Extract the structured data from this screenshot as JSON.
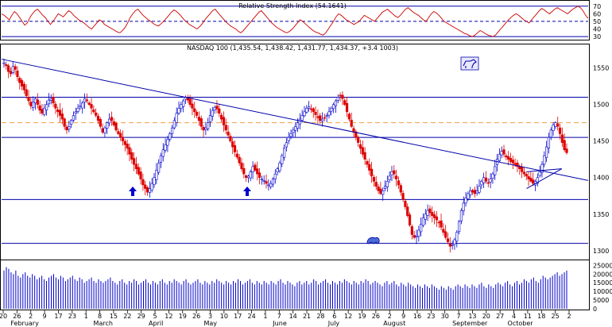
{
  "chart_data": [
    {
      "type": "line",
      "title": "Relative Strength Index (54.1641)",
      "y_ticks": [
        30,
        40,
        50,
        60,
        70
      ],
      "ylim": [
        28,
        75
      ],
      "reference_lines": [
        70,
        50,
        30
      ],
      "series": [
        {
          "values": [
            60,
            58,
            55,
            52,
            58,
            63,
            60,
            55,
            50,
            45,
            48,
            55,
            60,
            64,
            66,
            62,
            58,
            55,
            50,
            46,
            50,
            55,
            60,
            58,
            56,
            60,
            64,
            62,
            58,
            55,
            52,
            50,
            48,
            45,
            42,
            40,
            44,
            48,
            52,
            50,
            46,
            44,
            42,
            40,
            38,
            36,
            35,
            38,
            42,
            48,
            55,
            60,
            64,
            66,
            62,
            58,
            55,
            52,
            50,
            47,
            45,
            44,
            47,
            50,
            54,
            58,
            62,
            65,
            63,
            60,
            56,
            52,
            49,
            46,
            44,
            42,
            40,
            43,
            47,
            52,
            56,
            60,
            64,
            66,
            62,
            58,
            54,
            50,
            47,
            44,
            42,
            40,
            37,
            35,
            38,
            42,
            46,
            50,
            54,
            58,
            62,
            64,
            60,
            56,
            52,
            48,
            45,
            42,
            40,
            38,
            36,
            35,
            37,
            40,
            44,
            48,
            52,
            50,
            47,
            44,
            41,
            38,
            36,
            35,
            33,
            32,
            35,
            40,
            45,
            50,
            56,
            60,
            58,
            55,
            52,
            50,
            48,
            46,
            48,
            50,
            54,
            58,
            56,
            54,
            52,
            50,
            54,
            58,
            62,
            64,
            66,
            63,
            60,
            57,
            55,
            58,
            62,
            66,
            68,
            65,
            62,
            60,
            58,
            55,
            52,
            50,
            55,
            60,
            63,
            61,
            58,
            54,
            50,
            48,
            46,
            44,
            42,
            40,
            38,
            36,
            34,
            33,
            31,
            30,
            32,
            35,
            38,
            36,
            34,
            32,
            31,
            30,
            32,
            36,
            40,
            44,
            48,
            52,
            55,
            58,
            60,
            58,
            55,
            52,
            50,
            48,
            52,
            56,
            60,
            64,
            67,
            65,
            62,
            60,
            63,
            66,
            68,
            66,
            64,
            62,
            60,
            63,
            66,
            68,
            70,
            68,
            64,
            58,
            54
          ]
        }
      ]
    },
    {
      "type": "candlestick",
      "title": "NASDAQ 100 (1,435.54, 1,438.42, 1,431.77, 1,434.37, +3.4 1003)",
      "y_ticks": [
        1300,
        1350,
        1400,
        1450,
        1500,
        1550
      ],
      "ylim": [
        1290,
        1580
      ],
      "horizontal_lines": [
        1310,
        1370,
        1455,
        1510
      ],
      "dashed_line": 1475,
      "x_month_labels": [
        "February",
        "March",
        "April",
        "May",
        "June",
        "July",
        "August",
        "September",
        "October"
      ],
      "x_day_labels": [
        "20",
        "26",
        "2",
        "9",
        "17",
        "23",
        "1",
        "8",
        "15",
        "22",
        "29",
        "5",
        "12",
        "19",
        "26",
        "3",
        "10",
        "17",
        "24",
        "1",
        "7",
        "14",
        "21",
        "28",
        "6",
        "12",
        "19",
        "26",
        "2",
        "9",
        "16",
        "23",
        "30",
        "7",
        "13",
        "20",
        "27",
        "4",
        "11",
        "18",
        "25",
        "2"
      ],
      "trendlines": [
        {
          "from": [
            0,
            1562
          ],
          "to": [
            1,
            1396
          ]
        },
        {
          "from": [
            0.895,
            1385
          ],
          "to": [
            0.955,
            1412
          ]
        },
        {
          "from": [
            0.895,
            1408
          ],
          "to": [
            0.955,
            1412
          ]
        }
      ],
      "series": [
        {
          "name": "close",
          "values": [
            1557,
            1553,
            1545,
            1542,
            1552,
            1548,
            1538,
            1530,
            1525,
            1520,
            1512,
            1505,
            1498,
            1503,
            1508,
            1500,
            1492,
            1488,
            1495,
            1500,
            1506,
            1508,
            1502,
            1495,
            1490,
            1485,
            1480,
            1470,
            1465,
            1470,
            1478,
            1485,
            1490,
            1495,
            1498,
            1502,
            1508,
            1505,
            1500,
            1495,
            1490,
            1485,
            1478,
            1470,
            1462,
            1468,
            1475,
            1480,
            1478,
            1472,
            1465,
            1460,
            1455,
            1450,
            1445,
            1440,
            1432,
            1425,
            1418,
            1412,
            1405,
            1398,
            1390,
            1385,
            1380,
            1385,
            1392,
            1400,
            1410,
            1420,
            1430,
            1438,
            1445,
            1452,
            1460,
            1468,
            1478,
            1488,
            1495,
            1500,
            1505,
            1510,
            1506,
            1500,
            1495,
            1490,
            1485,
            1478,
            1470,
            1465,
            1468,
            1475,
            1485,
            1492,
            1496,
            1494,
            1488,
            1480,
            1472,
            1465,
            1458,
            1450,
            1442,
            1435,
            1428,
            1420,
            1412,
            1405,
            1400,
            1402,
            1408,
            1415,
            1410,
            1405,
            1400,
            1398,
            1396,
            1392,
            1390,
            1392,
            1398,
            1405,
            1412,
            1420,
            1430,
            1440,
            1448,
            1455,
            1460,
            1465,
            1470,
            1475,
            1480,
            1485,
            1490,
            1495,
            1497,
            1494,
            1490,
            1486,
            1482,
            1478,
            1480,
            1482,
            1485,
            1490,
            1495,
            1500,
            1505,
            1510,
            1512,
            1508,
            1500,
            1490,
            1480,
            1470,
            1462,
            1455,
            1448,
            1440,
            1432,
            1425,
            1418,
            1410,
            1402,
            1395,
            1388,
            1382,
            1378,
            1382,
            1388,
            1395,
            1402,
            1408,
            1405,
            1398,
            1390,
            1380,
            1370,
            1360,
            1348,
            1335,
            1322,
            1318,
            1320,
            1328,
            1336,
            1345,
            1350,
            1355,
            1352,
            1348,
            1345,
            1342,
            1338,
            1332,
            1325,
            1318,
            1312,
            1306,
            1308,
            1315,
            1325,
            1340,
            1355,
            1365,
            1372,
            1378,
            1382,
            1380,
            1378,
            1382,
            1388,
            1395,
            1400,
            1395,
            1392,
            1398,
            1405,
            1415,
            1425,
            1432,
            1436,
            1432,
            1428,
            1425,
            1422,
            1420,
            1418,
            1415,
            1412,
            1408,
            1405,
            1402,
            1398,
            1395,
            1392,
            1395,
            1400,
            1408,
            1418,
            1430,
            1442,
            1455,
            1465,
            1472,
            1475,
            1470,
            1460,
            1448,
            1438,
            1434
          ]
        }
      ]
    },
    {
      "type": "bar",
      "title": "Volume",
      "y_ticks": [
        0,
        5000,
        10000,
        15000,
        20000,
        25000
      ],
      "ylim": [
        0,
        27000
      ],
      "series": [
        {
          "values": [
            22000,
            24000,
            23000,
            21000,
            20000,
            22000,
            19000,
            18000,
            20000,
            21000,
            19000,
            18000,
            20000,
            19000,
            17000,
            18000,
            19000,
            17000,
            16000,
            18000,
            19000,
            20000,
            18000,
            17000,
            19000,
            18000,
            16000,
            17000,
            18000,
            19000,
            17000,
            16000,
            18000,
            17000,
            15000,
            16000,
            17000,
            18000,
            16000,
            15000,
            17000,
            16000,
            15000,
            16000,
            17000,
            18000,
            16000,
            15000,
            14000,
            16000,
            17000,
            15000,
            14000,
            16000,
            15000,
            17000,
            16000,
            14000,
            15000,
            16000,
            17000,
            15000,
            14000,
            16000,
            15000,
            14000,
            16000,
            17000,
            15000,
            14000,
            16000,
            15000,
            17000,
            16000,
            15000,
            14000,
            16000,
            17000,
            15000,
            14000,
            15000,
            16000,
            17000,
            15000,
            14000,
            16000,
            15000,
            14000,
            16000,
            15000,
            17000,
            16000,
            15000,
            14000,
            16000,
            15000,
            14000,
            16000,
            15000,
            17000,
            16000,
            14000,
            15000,
            16000,
            17000,
            15000,
            14000,
            16000,
            15000,
            14000,
            16000,
            15000,
            14000,
            16000,
            15000,
            14000,
            16000,
            17000,
            15000,
            14000,
            16000,
            15000,
            14000,
            13000,
            15000,
            16000,
            14000,
            15000,
            16000,
            14000,
            15000,
            17000,
            16000,
            14000,
            15000,
            16000,
            17000,
            15000,
            14000,
            16000,
            15000,
            14000,
            16000,
            15000,
            17000,
            16000,
            15000,
            14000,
            16000,
            15000,
            14000,
            16000,
            15000,
            17000,
            16000,
            14000,
            15000,
            16000,
            15000,
            14000,
            13000,
            15000,
            16000,
            14000,
            15000,
            16000,
            14000,
            13000,
            15000,
            14000,
            13000,
            15000,
            14000,
            13000,
            12000,
            14000,
            13000,
            12000,
            14000,
            13000,
            12000,
            14000,
            13000,
            12000,
            11000,
            13000,
            12000,
            11000,
            13000,
            12000,
            11000,
            13000,
            14000,
            13000,
            12000,
            14000,
            13000,
            12000,
            14000,
            13000,
            12000,
            14000,
            15000,
            13000,
            12000,
            14000,
            13000,
            12000,
            14000,
            15000,
            14000,
            13000,
            15000,
            16000,
            14000,
            13000,
            15000,
            16000,
            14000,
            15000,
            17000,
            16000,
            15000,
            17000,
            18000,
            16000,
            15000,
            17000,
            19000,
            18000,
            17000,
            18000,
            19000,
            20000,
            21000,
            19000,
            20000,
            21000,
            22000
          ]
        }
      ]
    }
  ]
}
